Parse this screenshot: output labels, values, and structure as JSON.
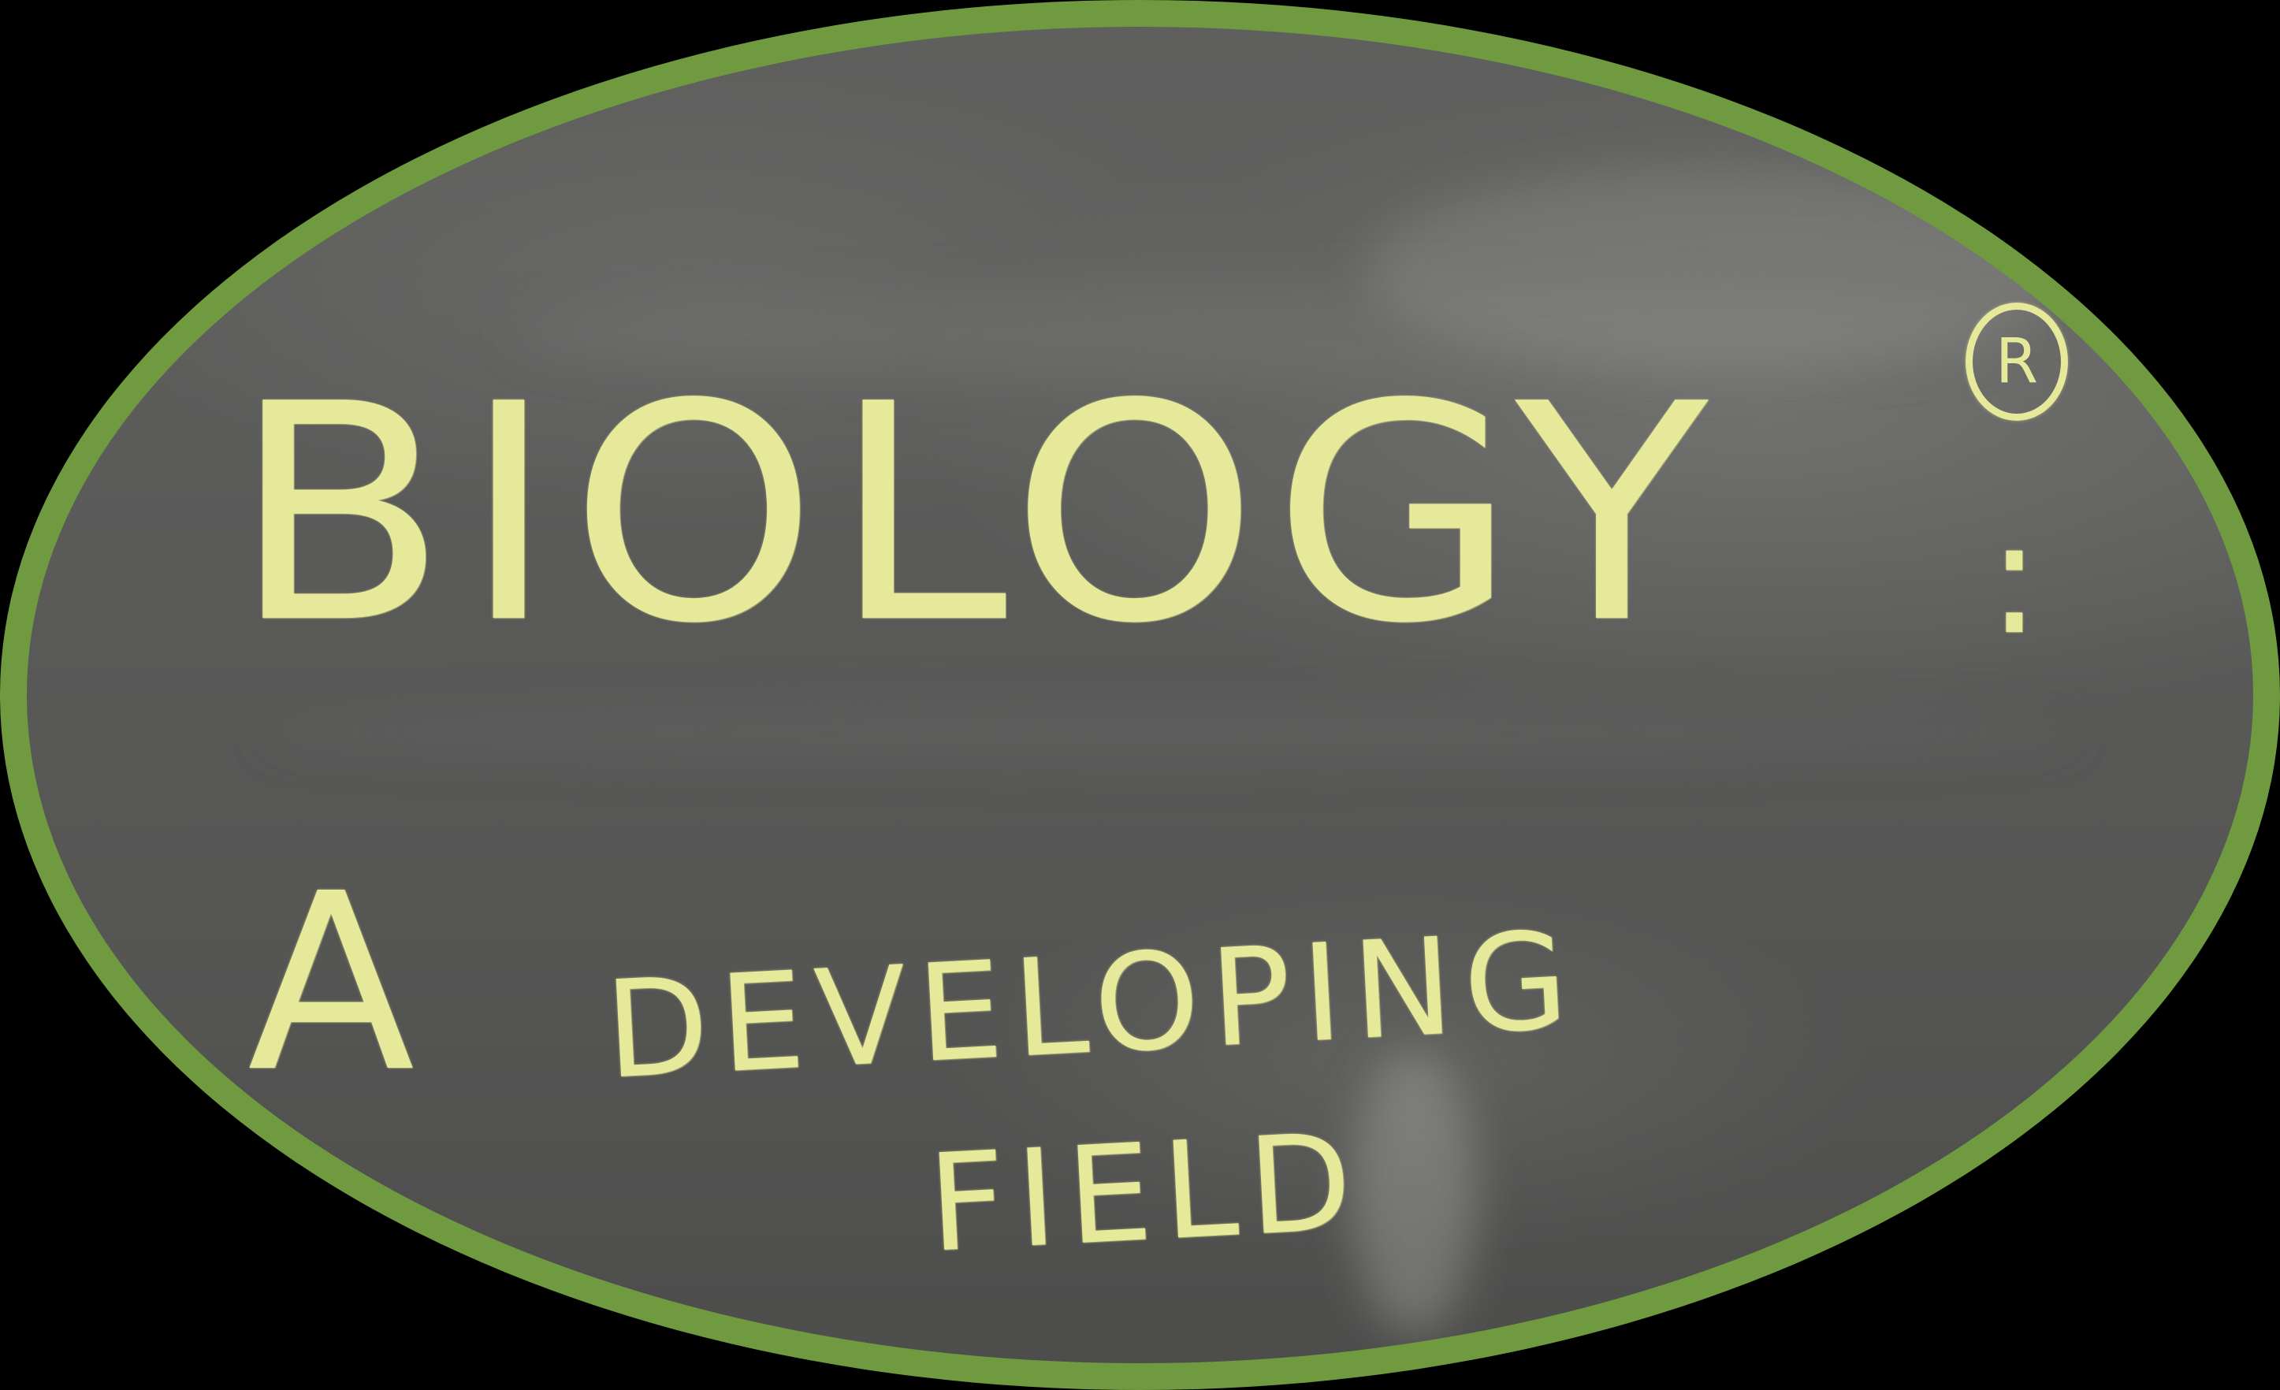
{
  "board": {
    "title": "BIOLOGY",
    "registered_mark": "R",
    "title_punctuation": ":",
    "article": "A",
    "subtitle_line1": "DEVELOPING",
    "subtitle_line2": "FIELD"
  },
  "colors": {
    "background": "#000000",
    "frame_border": "#6f9a40",
    "chalkboard": "#5a5a59",
    "chalk": "#e6e89a"
  }
}
